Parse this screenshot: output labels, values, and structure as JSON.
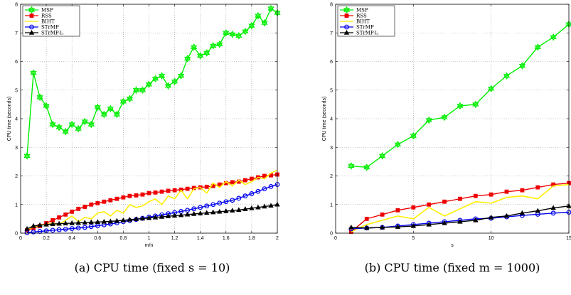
{
  "chart_data": [
    {
      "type": "line",
      "caption": "(a)  CPU time (fixed s = 10)",
      "xlabel": "m/n",
      "ylabel": "CPU time (seconds)",
      "xlim": [
        0,
        2
      ],
      "ylim": [
        0,
        8
      ],
      "xticks": [
        0,
        0.2,
        0.4,
        0.6,
        0.8,
        1,
        1.2,
        1.4,
        1.6,
        1.8,
        2
      ],
      "xtick_labels": [
        "0",
        "0.2",
        "0.4",
        "0.6",
        "0.8",
        "1",
        "1.2",
        "1.4",
        "1.6",
        "1.8",
        "2"
      ],
      "yticks": [
        0,
        1,
        2,
        3,
        4,
        5,
        6,
        7,
        8
      ],
      "ytick_labels": [
        "0",
        "1",
        "2",
        "3",
        "4",
        "5",
        "6",
        "7",
        "8"
      ],
      "grid": true,
      "legend_position": "top-left",
      "series": [
        {
          "name": "MSP",
          "color": "#00ee00",
          "marker": "hexagram",
          "x": [
            0.05,
            0.1,
            0.15,
            0.2,
            0.25,
            0.3,
            0.35,
            0.4,
            0.45,
            0.5,
            0.55,
            0.6,
            0.65,
            0.7,
            0.75,
            0.8,
            0.85,
            0.9,
            0.95,
            1.0,
            1.05,
            1.1,
            1.15,
            1.2,
            1.25,
            1.3,
            1.35,
            1.4,
            1.45,
            1.5,
            1.55,
            1.6,
            1.65,
            1.7,
            1.75,
            1.8,
            1.85,
            1.9,
            1.95,
            2.0
          ],
          "y": [
            2.7,
            5.6,
            4.75,
            4.45,
            3.8,
            3.7,
            3.55,
            3.8,
            3.65,
            3.9,
            3.8,
            4.4,
            4.15,
            4.35,
            4.15,
            4.6,
            4.7,
            5.0,
            5.0,
            5.2,
            5.4,
            5.5,
            5.15,
            5.3,
            5.5,
            6.1,
            6.5,
            6.2,
            6.3,
            6.55,
            6.6,
            7.0,
            6.95,
            6.9,
            7.05,
            7.25,
            7.6,
            7.35,
            7.85,
            7.7
          ]
        },
        {
          "name": "RSS",
          "color": "#ee0000",
          "marker": "square",
          "x": [
            0.05,
            0.1,
            0.15,
            0.2,
            0.25,
            0.3,
            0.35,
            0.4,
            0.45,
            0.5,
            0.55,
            0.6,
            0.65,
            0.7,
            0.75,
            0.8,
            0.85,
            0.9,
            0.95,
            1.0,
            1.05,
            1.1,
            1.15,
            1.2,
            1.25,
            1.3,
            1.35,
            1.4,
            1.45,
            1.5,
            1.55,
            1.6,
            1.65,
            1.7,
            1.75,
            1.8,
            1.85,
            1.9,
            1.95,
            2.0
          ],
          "y": [
            0.1,
            0.18,
            0.25,
            0.35,
            0.45,
            0.55,
            0.65,
            0.75,
            0.85,
            0.92,
            1.0,
            1.05,
            1.1,
            1.15,
            1.2,
            1.25,
            1.3,
            1.32,
            1.35,
            1.4,
            1.42,
            1.45,
            1.48,
            1.5,
            1.52,
            1.55,
            1.58,
            1.6,
            1.62,
            1.65,
            1.7,
            1.75,
            1.78,
            1.8,
            1.85,
            1.9,
            1.95,
            2.0,
            2.02,
            2.05
          ]
        },
        {
          "name": "BIHT",
          "color": "#ffee00",
          "marker": "none",
          "x": [
            0.05,
            0.1,
            0.15,
            0.2,
            0.25,
            0.3,
            0.35,
            0.4,
            0.45,
            0.5,
            0.55,
            0.6,
            0.65,
            0.7,
            0.75,
            0.8,
            0.85,
            0.9,
            0.95,
            1.0,
            1.05,
            1.1,
            1.15,
            1.2,
            1.25,
            1.3,
            1.35,
            1.4,
            1.45,
            1.5,
            1.55,
            1.6,
            1.65,
            1.7,
            1.75,
            1.8,
            1.85,
            1.9,
            1.95,
            2.0
          ],
          "y": [
            0.15,
            0.2,
            0.3,
            0.3,
            0.35,
            0.3,
            0.45,
            0.6,
            0.4,
            0.55,
            0.5,
            0.7,
            0.75,
            0.6,
            0.8,
            0.7,
            1.0,
            0.9,
            0.95,
            1.1,
            1.2,
            1.0,
            1.3,
            1.2,
            1.5,
            1.2,
            1.55,
            1.6,
            1.4,
            1.75,
            1.6,
            1.8,
            1.65,
            1.85,
            1.7,
            1.8,
            1.95,
            1.9,
            2.1,
            2.2
          ]
        },
        {
          "name": "STrMP",
          "color": "#0000ee",
          "marker": "circle",
          "x": [
            0.05,
            0.1,
            0.15,
            0.2,
            0.25,
            0.3,
            0.35,
            0.4,
            0.45,
            0.5,
            0.55,
            0.6,
            0.65,
            0.7,
            0.75,
            0.8,
            0.85,
            0.9,
            0.95,
            1.0,
            1.05,
            1.1,
            1.15,
            1.2,
            1.25,
            1.3,
            1.35,
            1.4,
            1.45,
            1.5,
            1.55,
            1.6,
            1.65,
            1.7,
            1.75,
            1.8,
            1.85,
            1.9,
            1.95,
            2.0
          ],
          "y": [
            0.02,
            0.04,
            0.06,
            0.08,
            0.1,
            0.12,
            0.14,
            0.16,
            0.18,
            0.2,
            0.23,
            0.26,
            0.29,
            0.32,
            0.36,
            0.4,
            0.44,
            0.48,
            0.52,
            0.56,
            0.6,
            0.64,
            0.68,
            0.72,
            0.76,
            0.8,
            0.85,
            0.9,
            0.95,
            1.0,
            1.05,
            1.1,
            1.15,
            1.22,
            1.3,
            1.38,
            1.46,
            1.55,
            1.63,
            1.7
          ]
        },
        {
          "name": "STrMP-l₁",
          "color": "#000000",
          "marker": "triangle",
          "x": [
            0.05,
            0.1,
            0.15,
            0.2,
            0.25,
            0.3,
            0.35,
            0.4,
            0.45,
            0.5,
            0.55,
            0.6,
            0.65,
            0.7,
            0.75,
            0.8,
            0.85,
            0.9,
            0.95,
            1.0,
            1.05,
            1.1,
            1.15,
            1.2,
            1.25,
            1.3,
            1.35,
            1.4,
            1.45,
            1.5,
            1.55,
            1.6,
            1.65,
            1.7,
            1.75,
            1.8,
            1.85,
            1.9,
            1.95,
            2.0
          ],
          "y": [
            0.15,
            0.25,
            0.28,
            0.3,
            0.32,
            0.33,
            0.34,
            0.35,
            0.36,
            0.37,
            0.38,
            0.39,
            0.4,
            0.41,
            0.43,
            0.45,
            0.47,
            0.49,
            0.51,
            0.53,
            0.55,
            0.57,
            0.59,
            0.61,
            0.63,
            0.65,
            0.67,
            0.69,
            0.71,
            0.73,
            0.75,
            0.77,
            0.79,
            0.81,
            0.84,
            0.87,
            0.9,
            0.93,
            0.96,
            1.0
          ]
        }
      ]
    },
    {
      "type": "line",
      "caption": "(b)  CPU time (fixed m = 1000)",
      "xlabel": "s",
      "ylabel": "CPU time (seconds)",
      "xlim": [
        0,
        15
      ],
      "ylim": [
        0,
        8
      ],
      "xticks": [
        0,
        5,
        10,
        15
      ],
      "xtick_labels": [
        "0",
        "5",
        "10",
        "15"
      ],
      "yticks": [
        0,
        1,
        2,
        3,
        4,
        5,
        6,
        7,
        8
      ],
      "ytick_labels": [
        "0",
        "1",
        "2",
        "3",
        "4",
        "5",
        "6",
        "7",
        "8"
      ],
      "grid": true,
      "legend_position": "top-left",
      "series": [
        {
          "name": "MSP",
          "color": "#00ee00",
          "marker": "hexagram",
          "x": [
            1,
            2,
            3,
            4,
            5,
            6,
            7,
            8,
            9,
            10,
            11,
            12,
            13,
            14,
            15
          ],
          "y": [
            2.35,
            2.3,
            2.7,
            3.1,
            3.4,
            3.95,
            4.05,
            4.45,
            4.5,
            5.05,
            5.5,
            5.85,
            6.5,
            6.85,
            7.3
          ]
        },
        {
          "name": "RSS",
          "color": "#ee0000",
          "marker": "square",
          "x": [
            1,
            2,
            3,
            4,
            5,
            6,
            7,
            8,
            9,
            10,
            11,
            12,
            13,
            14,
            15
          ],
          "y": [
            0.05,
            0.5,
            0.65,
            0.8,
            0.9,
            1.0,
            1.1,
            1.2,
            1.3,
            1.35,
            1.45,
            1.5,
            1.6,
            1.7,
            1.75
          ]
        },
        {
          "name": "BIHT",
          "color": "#ffee00",
          "marker": "none",
          "x": [
            1,
            2,
            3,
            4,
            5,
            6,
            7,
            8,
            9,
            10,
            11,
            12,
            13,
            14,
            15
          ],
          "y": [
            0.05,
            0.3,
            0.45,
            0.6,
            0.5,
            0.9,
            0.6,
            0.85,
            1.1,
            1.05,
            1.25,
            1.3,
            1.2,
            1.65,
            1.7
          ]
        },
        {
          "name": "STrMP",
          "color": "#0000ee",
          "marker": "circle",
          "x": [
            1,
            2,
            3,
            4,
            5,
            6,
            7,
            8,
            9,
            10,
            11,
            12,
            13,
            14,
            15
          ],
          "y": [
            0.15,
            0.18,
            0.2,
            0.25,
            0.3,
            0.35,
            0.4,
            0.45,
            0.5,
            0.52,
            0.57,
            0.62,
            0.66,
            0.7,
            0.73
          ]
        },
        {
          "name": "STrMP-l₁",
          "color": "#000000",
          "marker": "triangle",
          "x": [
            1,
            2,
            3,
            4,
            5,
            6,
            7,
            8,
            9,
            10,
            11,
            12,
            13,
            14,
            15
          ],
          "y": [
            0.2,
            0.18,
            0.2,
            0.22,
            0.25,
            0.3,
            0.35,
            0.4,
            0.45,
            0.55,
            0.6,
            0.7,
            0.78,
            0.88,
            0.95
          ]
        }
      ]
    }
  ]
}
